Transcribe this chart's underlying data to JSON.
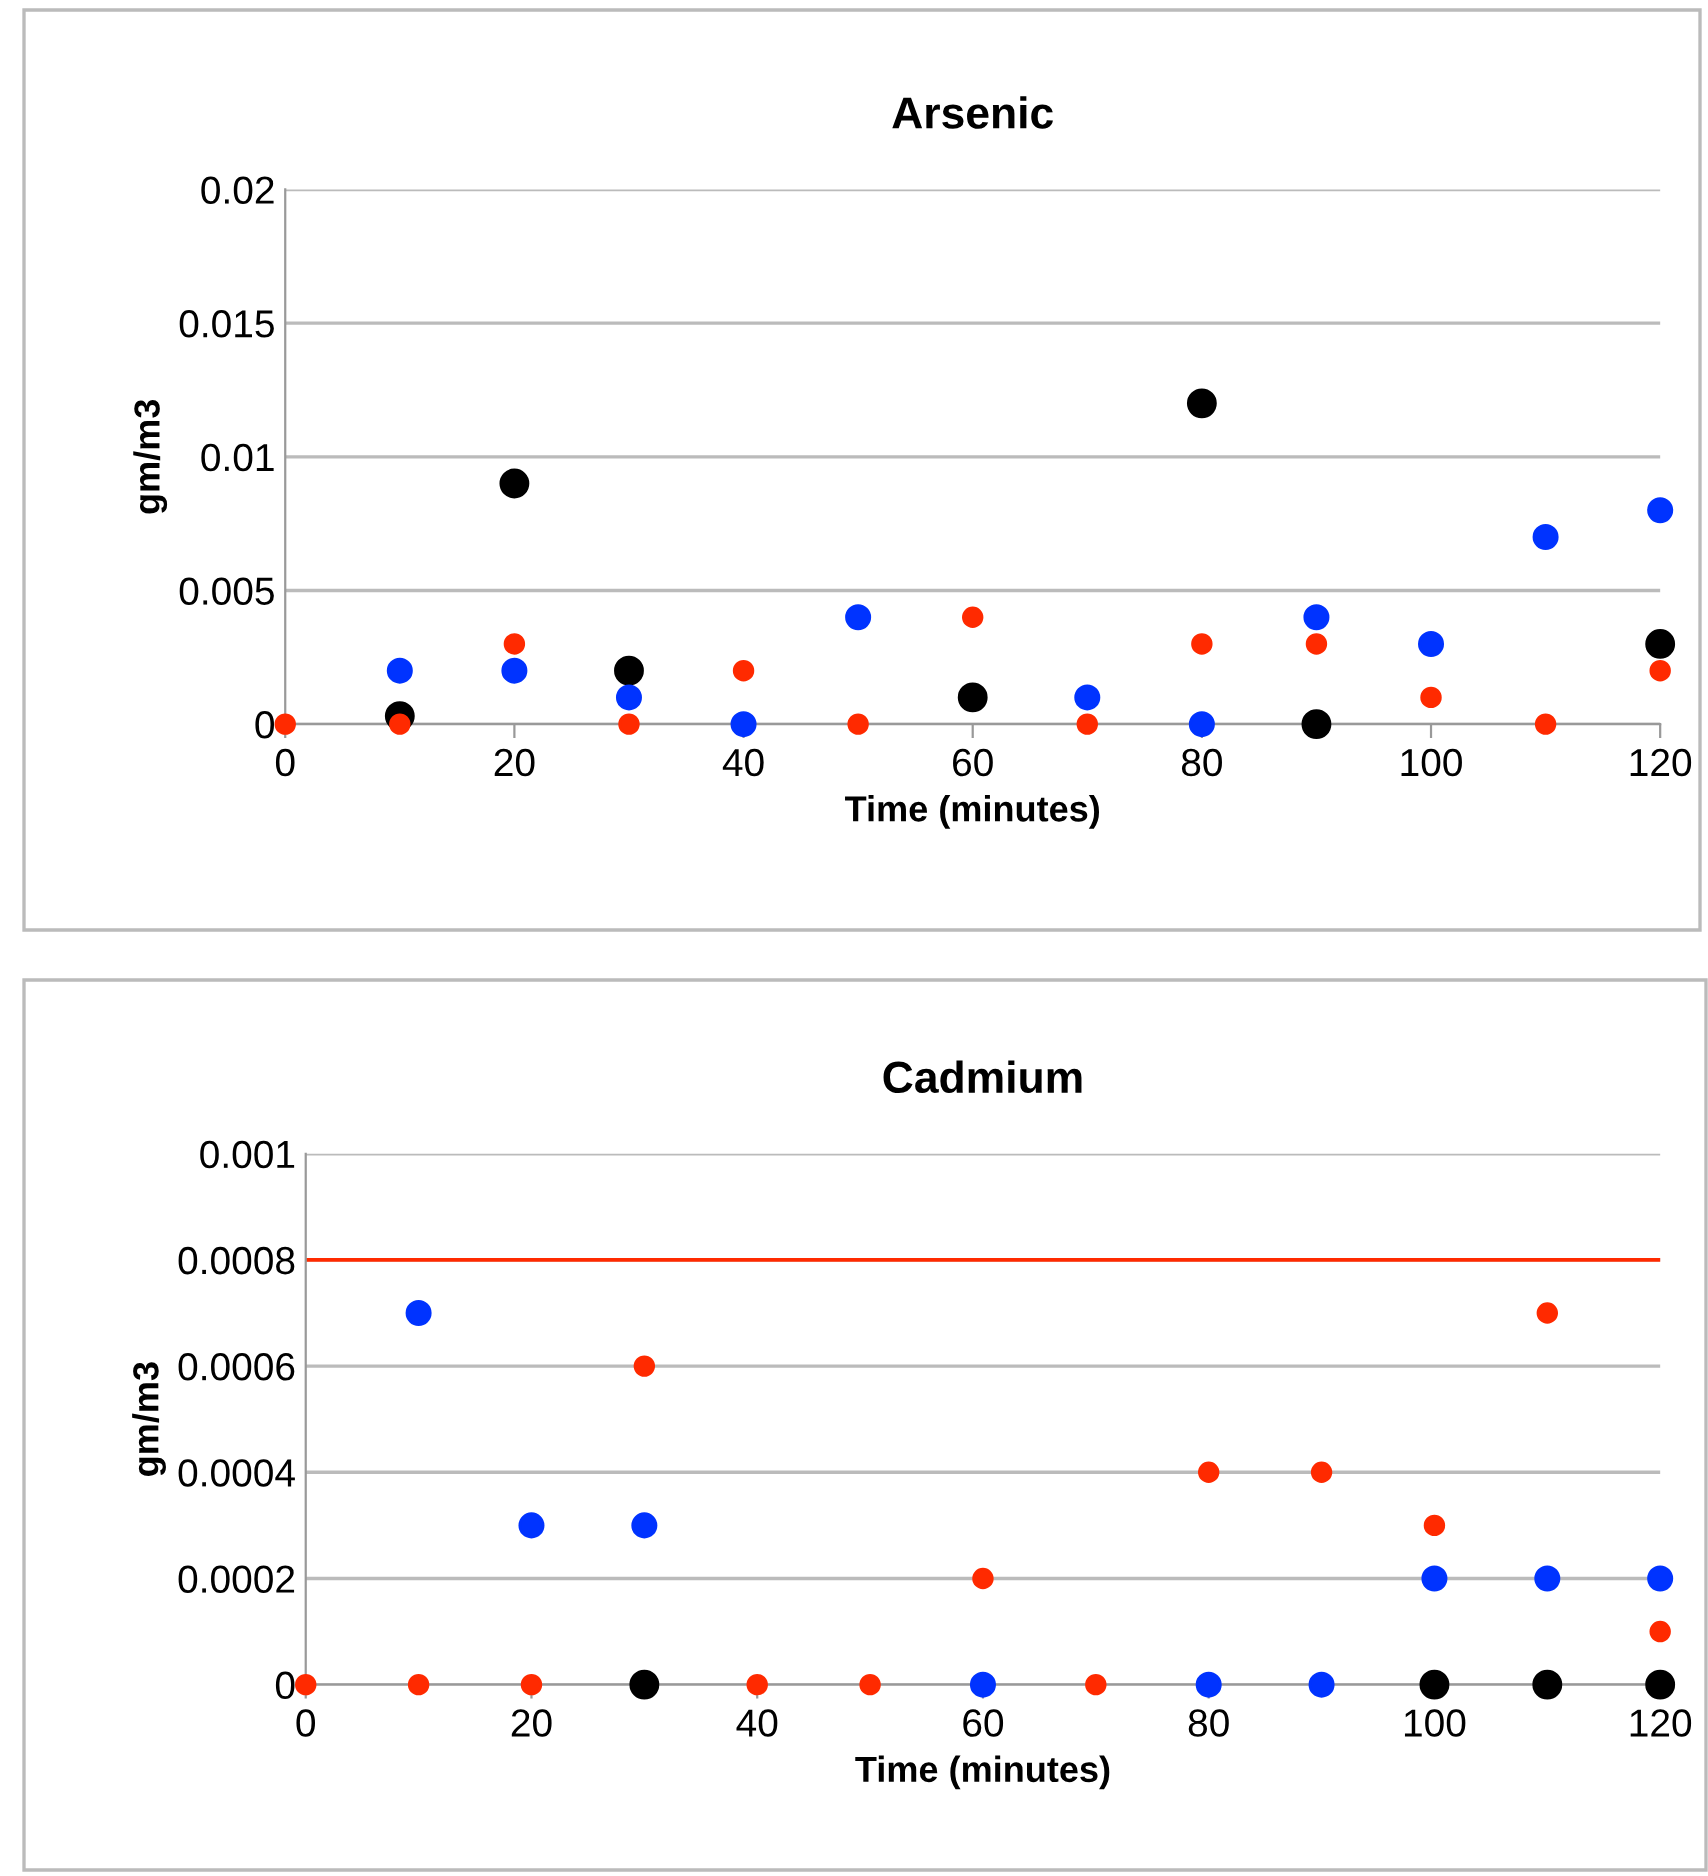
{
  "chart_data": [
    {
      "type": "scatter",
      "title": "Arsenic",
      "xlabel": "Time (minutes)",
      "ylabel": "gm/m3",
      "x": [
        0,
        10,
        20,
        30,
        40,
        50,
        60,
        70,
        80,
        90,
        100,
        110,
        120
      ],
      "series": [
        {
          "color": "#000000",
          "values": [
            null,
            0.0003,
            0.009,
            0.002,
            null,
            null,
            0.001,
            null,
            0.012,
            0,
            null,
            null,
            0.003
          ]
        },
        {
          "color": "#0033ff",
          "values": [
            null,
            0.002,
            0.002,
            0.001,
            0,
            0.004,
            null,
            0.001,
            0,
            0.004,
            0.003,
            0.007,
            0.008
          ]
        },
        {
          "color": "#ff2a00",
          "values": [
            0,
            0,
            0.003,
            0,
            0.002,
            0,
            0.004,
            0,
            0.003,
            0.003,
            0.001,
            0,
            0.002
          ]
        }
      ],
      "xlim": [
        0,
        120
      ],
      "xticks": [
        0,
        20,
        40,
        60,
        80,
        100,
        120
      ],
      "ylim": [
        0,
        0.02
      ],
      "yticks": [
        0,
        0.005,
        0.01,
        0.015,
        0.02
      ],
      "grid": "y",
      "marker": "circle",
      "legend": false
    },
    {
      "type": "scatter",
      "title": "Cadmium",
      "xlabel": "Time (minutes)",
      "ylabel": "gm/m3",
      "x": [
        0,
        10,
        20,
        30,
        40,
        50,
        60,
        70,
        80,
        90,
        100,
        110,
        120
      ],
      "series": [
        {
          "color": "#000000",
          "values": [
            null,
            null,
            null,
            0,
            null,
            null,
            null,
            null,
            null,
            null,
            0,
            0,
            0
          ]
        },
        {
          "color": "#0033ff",
          "values": [
            null,
            0.0007,
            0.0003,
            0.0003,
            null,
            null,
            0,
            null,
            0,
            0,
            0.0002,
            0.0002,
            0.0002
          ]
        },
        {
          "color": "#ff2a00",
          "values": [
            0,
            0,
            0,
            0.0006,
            0,
            0,
            0.0002,
            0,
            0.0004,
            0.0004,
            0.0003,
            0.0007,
            0.0001
          ]
        }
      ],
      "xlim": [
        0,
        120
      ],
      "xticks": [
        0,
        20,
        40,
        60,
        80,
        100,
        120
      ],
      "ylim": [
        0,
        0.001
      ],
      "yticks": [
        0,
        0.0002,
        0.0004,
        0.0006,
        0.0008,
        0.001
      ],
      "grid": "y",
      "marker": "circle",
      "legend": false,
      "ref_lines": [
        {
          "axis": "y",
          "value": 0.0008,
          "color": "#ff2a00"
        }
      ]
    }
  ]
}
